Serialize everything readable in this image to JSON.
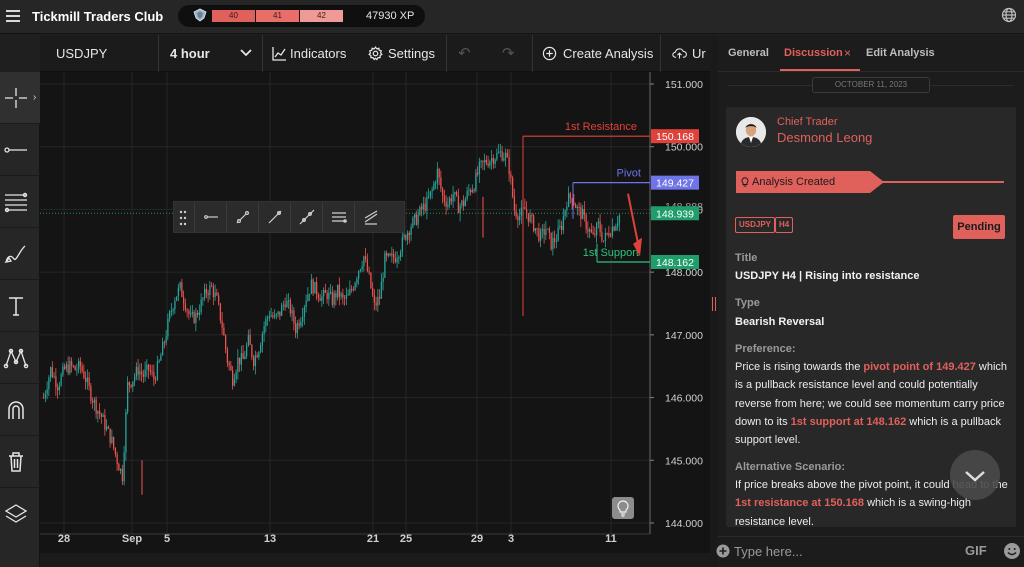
{
  "app": {
    "title": "Tickmill Traders Club",
    "xp": {
      "levels": [
        "40",
        "41",
        "42"
      ],
      "value": "47930 XP"
    }
  },
  "toolbar": {
    "symbol": "USDJPY",
    "timeframe": "4 hour",
    "indicators": "Indicators",
    "settings": "Settings",
    "undo": "↶",
    "redo": "↷",
    "create_analysis": "Create Analysis",
    "more": "Ur"
  },
  "sidebar": {
    "tools": [
      "crosshair-icon",
      "trend-line-icon",
      "fib-lines-icon",
      "brush-icon",
      "text-tool-icon",
      "pattern-icon",
      "magnet-icon",
      "trash-icon",
      "layers-icon"
    ]
  },
  "drawing_toolbar": {
    "tools": [
      "horizontal-line-icon",
      "ray-icon",
      "segment-icon",
      "extended-line-icon",
      "parallel-channel-icon",
      "regression-icon"
    ]
  },
  "chart_data": {
    "type": "candlestick",
    "symbol": "USDJPY",
    "timeframe": "4 hour",
    "y_ticks": [
      "151.000",
      "150.000",
      "149.000",
      "148.000",
      "147.000",
      "146.000",
      "145.000",
      "144.000"
    ],
    "ylim": [
      143.9,
      151.05
    ],
    "x_ticks": [
      "28",
      "Sep",
      "5",
      "13",
      "21",
      "25",
      "29",
      "3",
      "11"
    ],
    "path": [
      [
        0,
        146.0
      ],
      [
        4,
        146.45
      ],
      [
        8,
        146.2
      ],
      [
        12,
        146.45
      ],
      [
        15,
        146.5
      ],
      [
        18,
        146.45
      ],
      [
        21,
        146.5
      ],
      [
        24,
        146.3
      ],
      [
        27,
        146.05
      ],
      [
        30,
        145.85
      ],
      [
        33,
        145.7
      ],
      [
        36,
        145.5
      ],
      [
        39,
        145.3
      ],
      [
        42,
        145.0
      ],
      [
        45,
        144.75
      ],
      [
        48,
        146.2
      ],
      [
        51,
        146.3
      ],
      [
        54,
        146.45
      ],
      [
        57,
        146.35
      ],
      [
        60,
        146.45
      ],
      [
        63,
        146.3
      ],
      [
        66,
        146.55
      ],
      [
        69,
        146.9
      ],
      [
        72,
        147.3
      ],
      [
        75,
        147.6
      ],
      [
        78,
        147.75
      ],
      [
        81,
        147.5
      ],
      [
        84,
        147.25
      ],
      [
        87,
        147.3
      ],
      [
        90,
        147.5
      ],
      [
        93,
        147.7
      ],
      [
        96,
        147.75
      ],
      [
        99,
        147.55
      ],
      [
        102,
        147.15
      ],
      [
        105,
        146.6
      ],
      [
        108,
        146.3
      ],
      [
        111,
        146.6
      ],
      [
        114,
        146.6
      ],
      [
        117,
        146.9
      ],
      [
        120,
        146.6
      ],
      [
        123,
        146.8
      ],
      [
        126,
        147.15
      ],
      [
        129,
        147.35
      ],
      [
        132,
        147.25
      ],
      [
        135,
        147.35
      ],
      [
        138,
        147.55
      ],
      [
        141,
        147.4
      ],
      [
        144,
        147.1
      ],
      [
        147,
        147.3
      ],
      [
        150,
        147.6
      ],
      [
        153,
        147.8
      ],
      [
        156,
        147.7
      ],
      [
        159,
        147.6
      ],
      [
        162,
        147.65
      ],
      [
        165,
        147.55
      ],
      [
        168,
        147.7
      ],
      [
        171,
        147.55
      ],
      [
        174,
        147.6
      ],
      [
        177,
        147.8
      ],
      [
        180,
        148.05
      ],
      [
        183,
        148.25
      ],
      [
        186,
        147.9
      ],
      [
        189,
        147.45
      ],
      [
        192,
        147.6
      ],
      [
        195,
        148.2
      ],
      [
        198,
        148.2
      ],
      [
        201,
        148.25
      ],
      [
        204,
        148.4
      ],
      [
        207,
        148.6
      ],
      [
        210,
        148.75
      ],
      [
        213,
        148.85
      ],
      [
        216,
        149.0
      ],
      [
        219,
        149.1
      ],
      [
        222,
        149.3
      ],
      [
        225,
        149.6
      ],
      [
        228,
        149.2
      ],
      [
        231,
        149.1
      ],
      [
        234,
        149.25
      ],
      [
        237,
        149.05
      ],
      [
        240,
        149.1
      ],
      [
        243,
        149.3
      ],
      [
        246,
        149.4
      ],
      [
        249,
        149.65
      ],
      [
        252,
        149.75
      ],
      [
        255,
        149.8
      ],
      [
        258,
        149.85
      ],
      [
        261,
        149.9
      ],
      [
        264,
        149.85
      ],
      [
        266,
        149.65
      ],
      [
        269,
        149.0
      ],
      [
        272,
        148.9
      ],
      [
        275,
        149.0
      ],
      [
        278,
        148.85
      ],
      [
        281,
        148.7
      ],
      [
        284,
        148.55
      ],
      [
        287,
        148.7
      ],
      [
        290,
        148.45
      ],
      [
        293,
        148.55
      ],
      [
        296,
        148.75
      ],
      [
        299,
        149.15
      ],
      [
        302,
        149.2
      ],
      [
        305,
        149.0
      ],
      [
        308,
        148.9
      ],
      [
        311,
        148.7
      ],
      [
        314,
        148.55
      ],
      [
        317,
        148.75
      ],
      [
        320,
        148.5
      ],
      [
        323,
        148.65
      ],
      [
        326,
        148.75
      ],
      [
        329,
        148.9
      ]
    ],
    "levels": [
      {
        "name": "1st Resistance",
        "value": "150.168",
        "price": 150.168,
        "color": "#e0413a"
      },
      {
        "name": "Pivot",
        "value": "149.427",
        "price": 149.427,
        "color": "#6f74e8"
      },
      {
        "name": "1st Support",
        "value": "148.162",
        "price": 148.162,
        "color": "#2ec27e"
      }
    ],
    "current_price": "148.939",
    "current_price_value": 148.939,
    "partial_tick": "148.888"
  },
  "panel": {
    "tabs": {
      "general": "General",
      "discussion": "Discussion",
      "close": "×",
      "edit": "Edit Analysis"
    },
    "date": "OCTOBER 11, 2023",
    "author": {
      "role": "Chief Trader",
      "name": "Desmond Leong"
    },
    "status": "Analysis Created",
    "tags": [
      "USDJPY",
      "H4"
    ],
    "pending": "Pending",
    "title_label": "Title",
    "title_value": "USDJPY H4 | Rising into resistance",
    "type_label": "Type",
    "type_value": "Bearish Reversal",
    "preference_label": "Preference:",
    "preference": {
      "t1": "Price is rising towards the ",
      "h1": "pivot point of 149.427",
      "t2": " which is a pullback resistance level and could potentially reverse from here; we could see momentum carry price down to its ",
      "h2": "1st support at 148.162",
      "t3": " which is a pullback support level."
    },
    "alt_label": "Alternative Scenario:",
    "alternative": {
      "t1": "If price breaks above the pivot point, it could head to the ",
      "h1": "1st resistance at 150.168",
      "t2": " which is a swing-high resistance level."
    },
    "composer_placeholder": "Type here...",
    "gif": "GIF"
  },
  "colors": {
    "accent": "#e0605c",
    "up_candle": "#26a69a",
    "down_candle": "#ef5350"
  }
}
